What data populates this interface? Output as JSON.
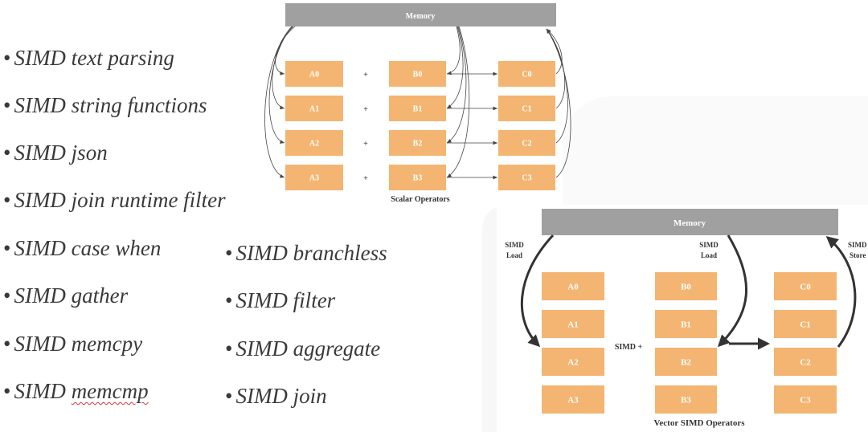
{
  "bullets_left": [
    "SIMD text parsing",
    "SIMD string functions",
    "SIMD json",
    "SIMD join runtime filter",
    "SIMD case when",
    "SIMD gather",
    "SIMD memcpy"
  ],
  "bullet_misspelled": {
    "prefix": "SIMD ",
    "word": "memcmp"
  },
  "bullets_right": [
    "SIMD branchless",
    "SIMD filter",
    "SIMD aggregate",
    "SIMD join"
  ],
  "bullet_symbol": "•",
  "scalar": {
    "memory_label": "Memory",
    "a": [
      "A0",
      "A1",
      "A2",
      "A3"
    ],
    "b": [
      "B0",
      "B1",
      "B2",
      "B3"
    ],
    "c": [
      "C0",
      "C1",
      "C2",
      "C3"
    ],
    "op": "+",
    "caption": "Scalar Operators"
  },
  "vector": {
    "memory_label": "Memory",
    "a": [
      "A0",
      "A1",
      "A2",
      "A3"
    ],
    "b": [
      "B0",
      "B1",
      "B2",
      "B3"
    ],
    "c": [
      "C0",
      "C1",
      "C2",
      "C3"
    ],
    "load_label_1": [
      "SIMD",
      "Load"
    ],
    "load_label_2": [
      "SIMD",
      "Load"
    ],
    "store_label": [
      "SIMD",
      "Store"
    ],
    "op": "SIMD +",
    "caption": "Vector SIMD Operators"
  },
  "colors": {
    "box": "#f3b571",
    "memory": "#a0a0a0",
    "box_text": "#ffffff",
    "text": "#3a3a3a"
  }
}
